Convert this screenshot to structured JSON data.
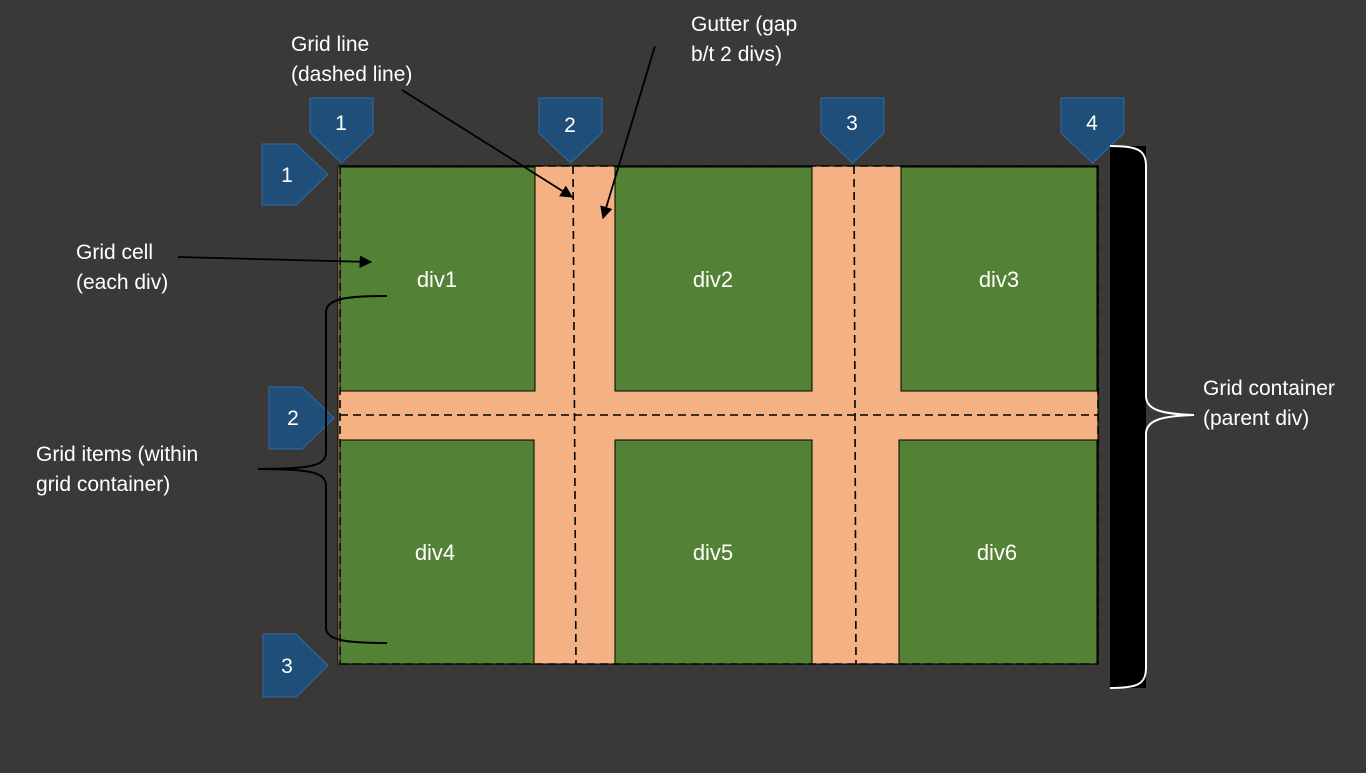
{
  "diagram": {
    "colors": {
      "background": "#3a3938",
      "cell_fill": "#538135",
      "gutter_fill": "#f4b183",
      "marker_fill": "#1f4e79",
      "marker_border": "#2e6aa6",
      "text": "#ffffff",
      "arrow": "#000000",
      "container_bar": "#000000"
    },
    "cells": [
      {
        "id": "div1",
        "label": "div1"
      },
      {
        "id": "div2",
        "label": "div2"
      },
      {
        "id": "div3",
        "label": "div3"
      },
      {
        "id": "div4",
        "label": "div4"
      },
      {
        "id": "div5",
        "label": "div5"
      },
      {
        "id": "div6",
        "label": "div6"
      }
    ],
    "column_line_markers": [
      "1",
      "2",
      "3",
      "4"
    ],
    "row_line_markers": [
      "1",
      "2",
      "3"
    ],
    "annotations": {
      "grid_line": [
        "Grid line",
        "(dashed line)"
      ],
      "gutter": [
        "Gutter (gap",
        "b/t 2 divs)"
      ],
      "grid_cell": [
        "Grid cell",
        "(each div)"
      ],
      "grid_items": [
        "Grid items (within",
        "grid container)"
      ],
      "grid_container": [
        "Grid container",
        "(parent div)"
      ]
    }
  }
}
